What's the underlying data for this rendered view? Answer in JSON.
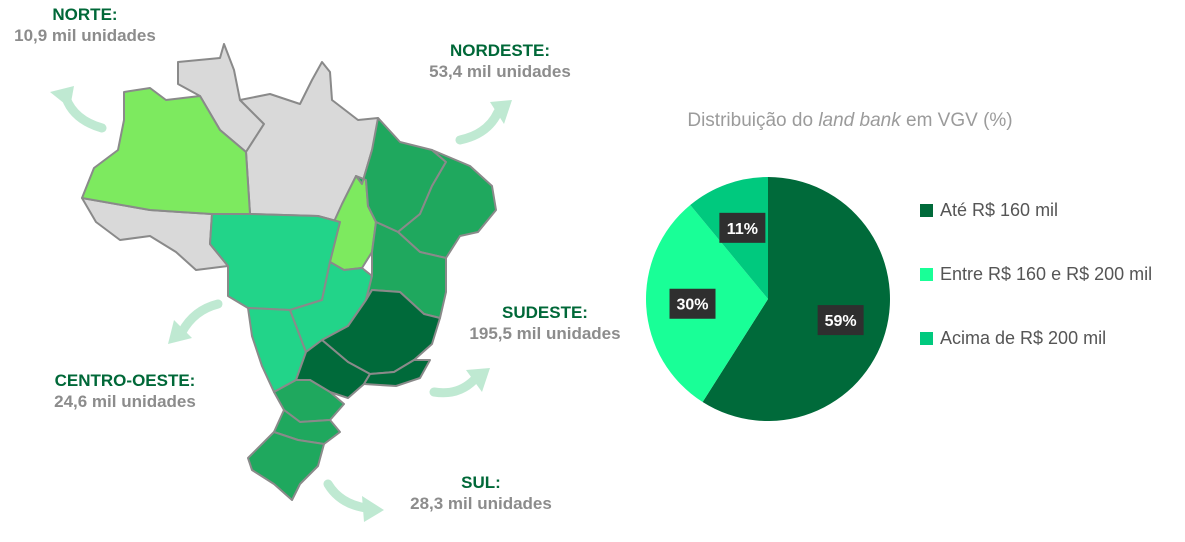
{
  "regions": [
    {
      "id": "norte",
      "name": "NORTE:",
      "value": "10,9 mil unidades"
    },
    {
      "id": "nordeste",
      "name": "NORDESTE:",
      "value": "53,4 mil unidades"
    },
    {
      "id": "centro-oeste",
      "name": "CENTRO-OESTE:",
      "value": "24,6 mil unidades"
    },
    {
      "id": "sudeste",
      "name": "SUDESTE:",
      "value": "195,5 mil unidades"
    },
    {
      "id": "sul",
      "name": "SUL:",
      "value": "28,3 mil unidades"
    }
  ],
  "pie": {
    "title_prefix": "Distribuição do ",
    "title_italic": "land bank",
    "title_suffix": " em VGV (%)"
  },
  "chart_data": {
    "type": "pie",
    "title": "Distribuição do land bank em VGV (%)",
    "categories": [
      "Até R$ 160 mil",
      "Entre R$ 160 e R$ 200 mil",
      "Acima de R$ 200 mil"
    ],
    "values": [
      59,
      30,
      11
    ],
    "labels": [
      "59%",
      "30%",
      "11%"
    ],
    "colors": [
      "#006a3a",
      "#19ff97",
      "#00c97e"
    ],
    "legend_position": "right"
  },
  "colors": {
    "region_title": "#006838",
    "region_value": "#8c8c8c",
    "map_gray": "#d9d9d9",
    "map_lightgreen": "#7dea5f",
    "map_green": "#1fa85e",
    "map_mint": "#22d489",
    "map_dark": "#006a3a",
    "arrow": "#bfe9d2"
  }
}
